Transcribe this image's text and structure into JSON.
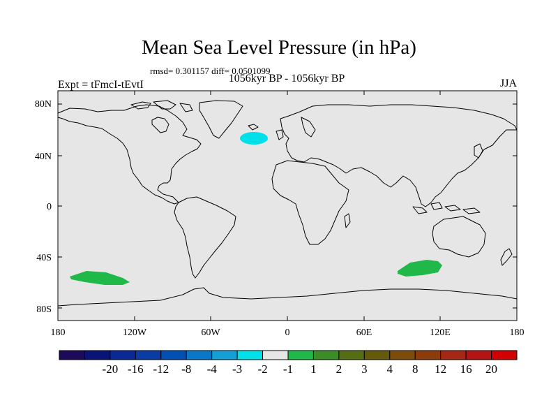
{
  "title": "Mean Sea Level Pressure (in hPa)",
  "stats_line": "rmsd= 0.301157 diff= 0.0501099",
  "period": "1056kyr BP - 1056kyr BP",
  "experiment": "Expt = tFmcI-tEvtI",
  "season": "JJA",
  "map": {
    "background_color": "#e6e6e6",
    "coastline_color": "#000000",
    "lat_labels": [
      "80N",
      "40N",
      "0",
      "40S",
      "80S"
    ],
    "lon_labels": [
      "180",
      "120W",
      "60W",
      "0",
      "60E",
      "120E",
      "180"
    ],
    "anomaly_regions": [
      {
        "region": "North Atlantic",
        "bin": "-2 to -1",
        "color": "#00e0e8"
      },
      {
        "region": "South Pacific",
        "bin": "1 to 2",
        "color": "#20b848"
      },
      {
        "region": "Southern Indian Ocean",
        "bin": "1 to 2",
        "color": "#20b848"
      }
    ]
  },
  "colorbar": {
    "colors": [
      "#1e0a5a",
      "#0a1478",
      "#0a2896",
      "#0a3ca5",
      "#0050b4",
      "#0a78c8",
      "#14a0d7",
      "#00e0e8",
      "#e6e6e6",
      "#20b848",
      "#3c8c28",
      "#556e14",
      "#645a0a",
      "#7d4b0a",
      "#8c3c0a",
      "#a52814",
      "#b41414",
      "#d20000"
    ],
    "labels": [
      "-20",
      "-16",
      "-12",
      "-8",
      "-4",
      "-3",
      "-2",
      "-1",
      "1",
      "2",
      "3",
      "4",
      "8",
      "12",
      "16",
      "20"
    ]
  }
}
